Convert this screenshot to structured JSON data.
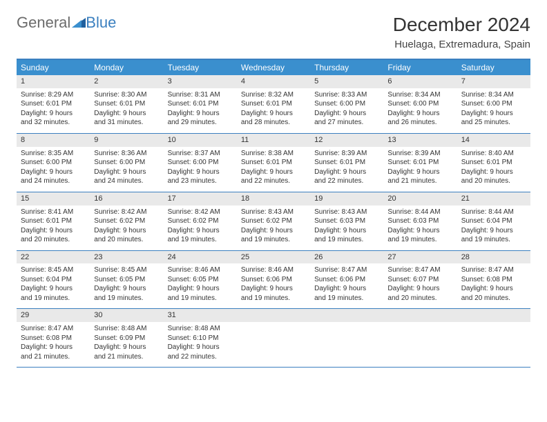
{
  "logo": {
    "part1": "General",
    "part2": "Blue"
  },
  "title": "December 2024",
  "location": "Huelaga, Extremadura, Spain",
  "colors": {
    "header_bg": "#3a8fce",
    "header_text": "#ffffff",
    "border": "#3a7fbf",
    "daynum_bg": "#e9e9e9",
    "text": "#333333",
    "logo_gray": "#6b6b6b",
    "logo_blue": "#3a7fbf"
  },
  "weekdays": [
    "Sunday",
    "Monday",
    "Tuesday",
    "Wednesday",
    "Thursday",
    "Friday",
    "Saturday"
  ],
  "weeks": [
    [
      {
        "day": "1",
        "sunrise": "Sunrise: 8:29 AM",
        "sunset": "Sunset: 6:01 PM",
        "daylight1": "Daylight: 9 hours",
        "daylight2": "and 32 minutes."
      },
      {
        "day": "2",
        "sunrise": "Sunrise: 8:30 AM",
        "sunset": "Sunset: 6:01 PM",
        "daylight1": "Daylight: 9 hours",
        "daylight2": "and 31 minutes."
      },
      {
        "day": "3",
        "sunrise": "Sunrise: 8:31 AM",
        "sunset": "Sunset: 6:01 PM",
        "daylight1": "Daylight: 9 hours",
        "daylight2": "and 29 minutes."
      },
      {
        "day": "4",
        "sunrise": "Sunrise: 8:32 AM",
        "sunset": "Sunset: 6:01 PM",
        "daylight1": "Daylight: 9 hours",
        "daylight2": "and 28 minutes."
      },
      {
        "day": "5",
        "sunrise": "Sunrise: 8:33 AM",
        "sunset": "Sunset: 6:00 PM",
        "daylight1": "Daylight: 9 hours",
        "daylight2": "and 27 minutes."
      },
      {
        "day": "6",
        "sunrise": "Sunrise: 8:34 AM",
        "sunset": "Sunset: 6:00 PM",
        "daylight1": "Daylight: 9 hours",
        "daylight2": "and 26 minutes."
      },
      {
        "day": "7",
        "sunrise": "Sunrise: 8:34 AM",
        "sunset": "Sunset: 6:00 PM",
        "daylight1": "Daylight: 9 hours",
        "daylight2": "and 25 minutes."
      }
    ],
    [
      {
        "day": "8",
        "sunrise": "Sunrise: 8:35 AM",
        "sunset": "Sunset: 6:00 PM",
        "daylight1": "Daylight: 9 hours",
        "daylight2": "and 24 minutes."
      },
      {
        "day": "9",
        "sunrise": "Sunrise: 8:36 AM",
        "sunset": "Sunset: 6:00 PM",
        "daylight1": "Daylight: 9 hours",
        "daylight2": "and 24 minutes."
      },
      {
        "day": "10",
        "sunrise": "Sunrise: 8:37 AM",
        "sunset": "Sunset: 6:00 PM",
        "daylight1": "Daylight: 9 hours",
        "daylight2": "and 23 minutes."
      },
      {
        "day": "11",
        "sunrise": "Sunrise: 8:38 AM",
        "sunset": "Sunset: 6:01 PM",
        "daylight1": "Daylight: 9 hours",
        "daylight2": "and 22 minutes."
      },
      {
        "day": "12",
        "sunrise": "Sunrise: 8:39 AM",
        "sunset": "Sunset: 6:01 PM",
        "daylight1": "Daylight: 9 hours",
        "daylight2": "and 22 minutes."
      },
      {
        "day": "13",
        "sunrise": "Sunrise: 8:39 AM",
        "sunset": "Sunset: 6:01 PM",
        "daylight1": "Daylight: 9 hours",
        "daylight2": "and 21 minutes."
      },
      {
        "day": "14",
        "sunrise": "Sunrise: 8:40 AM",
        "sunset": "Sunset: 6:01 PM",
        "daylight1": "Daylight: 9 hours",
        "daylight2": "and 20 minutes."
      }
    ],
    [
      {
        "day": "15",
        "sunrise": "Sunrise: 8:41 AM",
        "sunset": "Sunset: 6:01 PM",
        "daylight1": "Daylight: 9 hours",
        "daylight2": "and 20 minutes."
      },
      {
        "day": "16",
        "sunrise": "Sunrise: 8:42 AM",
        "sunset": "Sunset: 6:02 PM",
        "daylight1": "Daylight: 9 hours",
        "daylight2": "and 20 minutes."
      },
      {
        "day": "17",
        "sunrise": "Sunrise: 8:42 AM",
        "sunset": "Sunset: 6:02 PM",
        "daylight1": "Daylight: 9 hours",
        "daylight2": "and 19 minutes."
      },
      {
        "day": "18",
        "sunrise": "Sunrise: 8:43 AM",
        "sunset": "Sunset: 6:02 PM",
        "daylight1": "Daylight: 9 hours",
        "daylight2": "and 19 minutes."
      },
      {
        "day": "19",
        "sunrise": "Sunrise: 8:43 AM",
        "sunset": "Sunset: 6:03 PM",
        "daylight1": "Daylight: 9 hours",
        "daylight2": "and 19 minutes."
      },
      {
        "day": "20",
        "sunrise": "Sunrise: 8:44 AM",
        "sunset": "Sunset: 6:03 PM",
        "daylight1": "Daylight: 9 hours",
        "daylight2": "and 19 minutes."
      },
      {
        "day": "21",
        "sunrise": "Sunrise: 8:44 AM",
        "sunset": "Sunset: 6:04 PM",
        "daylight1": "Daylight: 9 hours",
        "daylight2": "and 19 minutes."
      }
    ],
    [
      {
        "day": "22",
        "sunrise": "Sunrise: 8:45 AM",
        "sunset": "Sunset: 6:04 PM",
        "daylight1": "Daylight: 9 hours",
        "daylight2": "and 19 minutes."
      },
      {
        "day": "23",
        "sunrise": "Sunrise: 8:45 AM",
        "sunset": "Sunset: 6:05 PM",
        "daylight1": "Daylight: 9 hours",
        "daylight2": "and 19 minutes."
      },
      {
        "day": "24",
        "sunrise": "Sunrise: 8:46 AM",
        "sunset": "Sunset: 6:05 PM",
        "daylight1": "Daylight: 9 hours",
        "daylight2": "and 19 minutes."
      },
      {
        "day": "25",
        "sunrise": "Sunrise: 8:46 AM",
        "sunset": "Sunset: 6:06 PM",
        "daylight1": "Daylight: 9 hours",
        "daylight2": "and 19 minutes."
      },
      {
        "day": "26",
        "sunrise": "Sunrise: 8:47 AM",
        "sunset": "Sunset: 6:06 PM",
        "daylight1": "Daylight: 9 hours",
        "daylight2": "and 19 minutes."
      },
      {
        "day": "27",
        "sunrise": "Sunrise: 8:47 AM",
        "sunset": "Sunset: 6:07 PM",
        "daylight1": "Daylight: 9 hours",
        "daylight2": "and 20 minutes."
      },
      {
        "day": "28",
        "sunrise": "Sunrise: 8:47 AM",
        "sunset": "Sunset: 6:08 PM",
        "daylight1": "Daylight: 9 hours",
        "daylight2": "and 20 minutes."
      }
    ],
    [
      {
        "day": "29",
        "sunrise": "Sunrise: 8:47 AM",
        "sunset": "Sunset: 6:08 PM",
        "daylight1": "Daylight: 9 hours",
        "daylight2": "and 21 minutes."
      },
      {
        "day": "30",
        "sunrise": "Sunrise: 8:48 AM",
        "sunset": "Sunset: 6:09 PM",
        "daylight1": "Daylight: 9 hours",
        "daylight2": "and 21 minutes."
      },
      {
        "day": "31",
        "sunrise": "Sunrise: 8:48 AM",
        "sunset": "Sunset: 6:10 PM",
        "daylight1": "Daylight: 9 hours",
        "daylight2": "and 22 minutes."
      },
      {
        "empty": true
      },
      {
        "empty": true
      },
      {
        "empty": true
      },
      {
        "empty": true
      }
    ]
  ]
}
